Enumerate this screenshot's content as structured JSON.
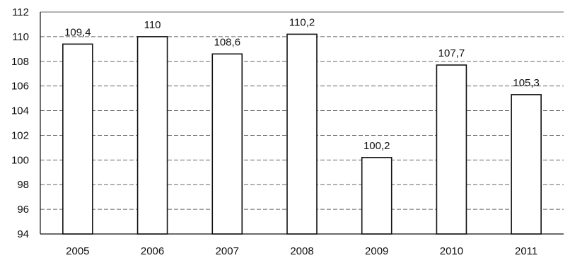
{
  "chart_data": {
    "type": "bar",
    "title": "",
    "xlabel": "",
    "ylabel": "",
    "categories": [
      "2005",
      "2006",
      "2007",
      "2008",
      "2009",
      "2010",
      "2011"
    ],
    "values": [
      109.4,
      110,
      108.6,
      110.2,
      100.2,
      107.7,
      105.3
    ],
    "value_labels": [
      "109,4",
      "110",
      "108,6",
      "110,2",
      "100,2",
      "107,7",
      "105,3"
    ],
    "ylim": [
      94,
      112
    ],
    "yticks": [
      94,
      96,
      98,
      100,
      102,
      104,
      106,
      108,
      110,
      112
    ],
    "grid": true,
    "legend": "none",
    "colors": {
      "bar_fill": "#ffffff",
      "bar_stroke": "#111111",
      "grid": "#333333",
      "background": "#ffffff"
    }
  }
}
